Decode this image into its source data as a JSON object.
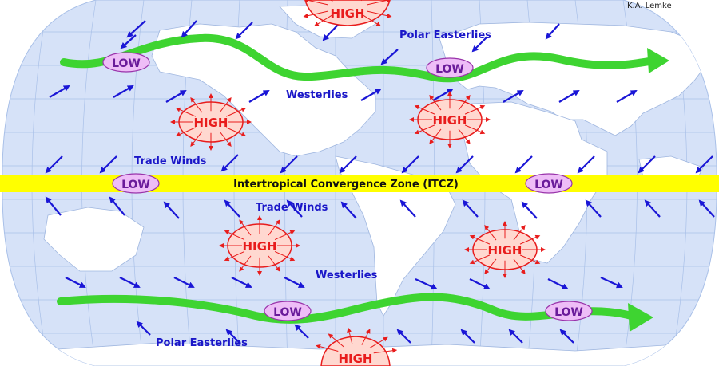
{
  "credit": "K.A. Lemke",
  "colors": {
    "ocean": "#d6e2f8",
    "land": "#ffffff",
    "graticule": "#a9c0e8",
    "wind_arrow": "#1a16d6",
    "wind_label": "#1a16c8",
    "jet_stream": "#3ed431",
    "itcz_band": "#ffff00",
    "high_fill": "#ffd8d0",
    "high_stroke": "#e81c1c",
    "low_fill": "#eebdf7",
    "low_stroke": "#9933aa",
    "low_text": "#6a1b9a"
  },
  "itcz_label": "Intertropical Convergence Zone (ITCZ)",
  "wind_labels": {
    "polar_easterlies_north": "Polar Easterlies",
    "westerlies_north": "Westerlies",
    "trade_winds_north": "Trade Winds",
    "trade_winds_south": "Trade Winds",
    "westerlies_south": "Westerlies",
    "polar_easterlies_south": "Polar Easterlies"
  },
  "pressure_cells": {
    "high_label": "HIGH",
    "low_label": "LOW"
  },
  "icons": {
    "wind_arrow": "arrow-icon",
    "jet_stream": "wavy-arrow-icon"
  }
}
